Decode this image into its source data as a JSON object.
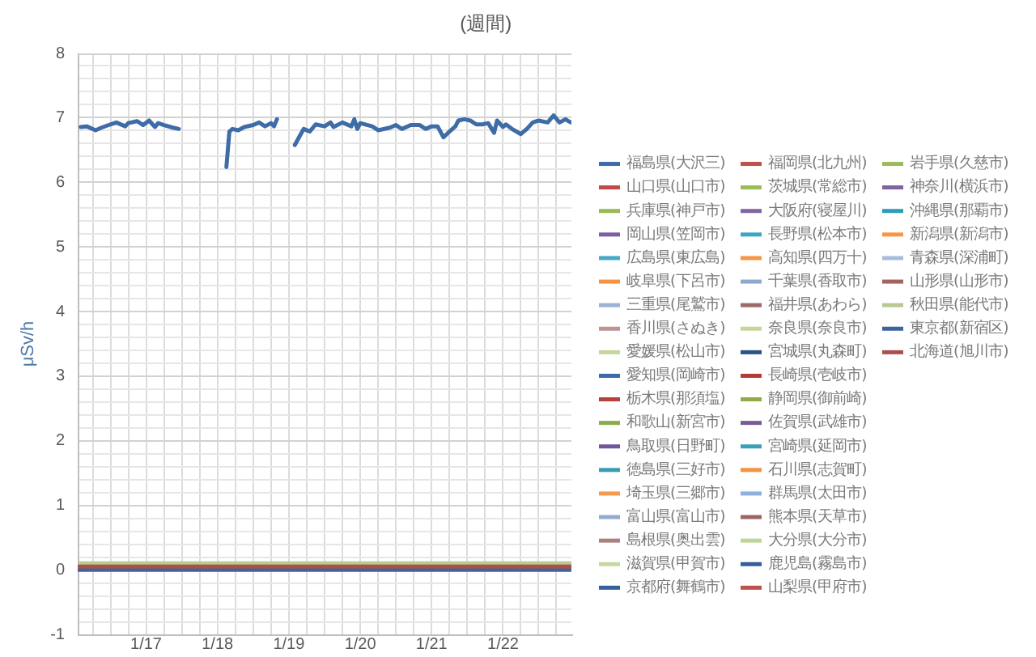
{
  "chart_data": {
    "type": "line",
    "title": "(週間)",
    "ylabel": "μSv/h",
    "legend": "right",
    "grid": true,
    "xlim": [
      "--01-16T01:00",
      "--01-22T23:00"
    ],
    "xticks": [
      {
        "value": "--01-16T06:00",
        "label": null
      },
      {
        "value": "--01-16T12:00",
        "label": null
      },
      {
        "value": "--01-16T18:00",
        "label": null
      },
      {
        "value": "--01-17T00:00",
        "label": "1/17"
      },
      {
        "value": "--01-17T06:00",
        "label": null
      },
      {
        "value": "--01-17T12:00",
        "label": null
      },
      {
        "value": "--01-17T18:00",
        "label": null
      },
      {
        "value": "--01-18T00:00",
        "label": "1/18"
      },
      {
        "value": "--01-18T06:00",
        "label": null
      },
      {
        "value": "--01-18T12:00",
        "label": null
      },
      {
        "value": "--01-18T18:00",
        "label": null
      },
      {
        "value": "--01-19T00:00",
        "label": "1/19"
      },
      {
        "value": "--01-19T06:00",
        "label": null
      },
      {
        "value": "--01-19T12:00",
        "label": null
      },
      {
        "value": "--01-19T18:00",
        "label": null
      },
      {
        "value": "--01-20T00:00",
        "label": "1/20"
      },
      {
        "value": "--01-20T06:00",
        "label": null
      },
      {
        "value": "--01-20T12:00",
        "label": null
      },
      {
        "value": "--01-20T18:00",
        "label": null
      },
      {
        "value": "--01-21T00:00",
        "label": "1/21"
      },
      {
        "value": "--01-21T06:00",
        "label": null
      },
      {
        "value": "--01-21T12:00",
        "label": null
      },
      {
        "value": "--01-21T18:00",
        "label": null
      },
      {
        "value": "--01-22T00:00",
        "label": "1/22"
      },
      {
        "value": "--01-22T06:00",
        "label": null
      },
      {
        "value": "--01-22T12:00",
        "label": null
      },
      {
        "value": "--01-22T18:00",
        "label": null
      }
    ],
    "ylim": [
      -1,
      8
    ],
    "yticks": [
      -1,
      {
        "value": -0.8,
        "label": null
      },
      {
        "value": -0.6,
        "label": null
      },
      {
        "value": -0.4,
        "label": null
      },
      {
        "value": -0.2,
        "label": null
      },
      0,
      {
        "value": 0.2,
        "label": null
      },
      {
        "value": 0.4,
        "label": null
      },
      {
        "value": 0.6,
        "label": null
      },
      {
        "value": 0.8,
        "label": null
      },
      1,
      {
        "value": 1.2,
        "label": null
      },
      {
        "value": 1.4,
        "label": null
      },
      {
        "value": 1.6,
        "label": null
      },
      {
        "value": 1.8,
        "label": null
      },
      2,
      {
        "value": 2.2,
        "label": null
      },
      {
        "value": 2.4,
        "label": null
      },
      {
        "value": 2.6,
        "label": null
      },
      {
        "value": 2.8,
        "label": null
      },
      3,
      {
        "value": 3.2,
        "label": null
      },
      {
        "value": 3.4,
        "label": null
      },
      {
        "value": 3.6,
        "label": null
      },
      {
        "value": 3.8,
        "label": null
      },
      4,
      {
        "value": 4.2,
        "label": null
      },
      {
        "value": 4.4,
        "label": null
      },
      {
        "value": 4.6,
        "label": null
      },
      {
        "value": 4.8,
        "label": null
      },
      5,
      {
        "value": 5.2,
        "label": null
      },
      {
        "value": 5.4,
        "label": null
      },
      {
        "value": 5.6,
        "label": null
      },
      {
        "value": 5.8,
        "label": null
      },
      6,
      {
        "value": 6.2,
        "label": null
      },
      {
        "value": 6.4,
        "label": null
      },
      {
        "value": 6.6,
        "label": null
      },
      {
        "value": 6.8,
        "label": null
      },
      7,
      {
        "value": 7.2,
        "label": null
      },
      {
        "value": 7.4,
        "label": null
      },
      {
        "value": 7.6,
        "label": null
      },
      {
        "value": 7.8,
        "label": null
      },
      8
    ],
    "x": [
      "--01-16T01:00",
      "--01-17T00:00",
      "--01-18T00:00",
      "--01-19T00:00",
      "--01-20T00:00",
      "--01-21T00:00",
      "--01-22T00:00",
      "--01-22T23:00"
    ],
    "series": [
      {
        "name": "福島県(大沢三)",
        "color": "#3e6ca6",
        "x": [
          "--01-16T02:00",
          "--01-16T04:00",
          "--01-16T07:00",
          "--01-16T09:00",
          "--01-16T12:00",
          "--01-16T14:00",
          "--01-16T17:00",
          "--01-16T18:00",
          "--01-16T21:00",
          "--01-16T23:00",
          "--01-17T01:00",
          "--01-17T03:00",
          "--01-17T04:00",
          "--01-17T06:00",
          "--01-17T09:00",
          "--01-17T11:00",
          "--01-17T12:00",
          "--01-18T03:00",
          "--01-18T04:00",
          "--01-18T05:00",
          "--01-18T07:00",
          "--01-18T09:00",
          "--01-18T12:00",
          "--01-18T14:00",
          "--01-18T16:00",
          "--01-18T18:00",
          "--01-18T19:00",
          "--01-18T20:00",
          "--01-18T21:00",
          "--01-19T02:00",
          "--01-19T04:00",
          "--01-19T05:00",
          "--01-19T07:00",
          "--01-19T09:00",
          "--01-19T12:00",
          "--01-19T14:00",
          "--01-19T15:00",
          "--01-19T18:00",
          "--01-19T21:00",
          "--01-19T22:00",
          "--01-19T23:00",
          "--01-20T00:00",
          "--01-20T04:00",
          "--01-20T06:00",
          "--01-20T10:00",
          "--01-20T12:00",
          "--01-20T14:00",
          "--01-20T17:00",
          "--01-20T20:00",
          "--01-20T22:00",
          "--01-21T00:00",
          "--01-21T02:00",
          "--01-21T04:00",
          "--01-21T06:00",
          "--01-21T08:00",
          "--01-21T09:00",
          "--01-21T11:00",
          "--01-21T13:00",
          "--01-21T15:00",
          "--01-21T17:00",
          "--01-21T19:00",
          "--01-21T21:00",
          "--01-21T22:00",
          "--01-22T00:00",
          "--01-22T01:00",
          "--01-22T03:00",
          "--01-22T06:00",
          "--01-22T08:00",
          "--01-22T10:00",
          "--01-22T12:00",
          "--01-22T15:00",
          "--01-22T17:00",
          "--01-22T19:00",
          "--01-22T21:00",
          "--01-22T22:00",
          "--01-22T23:00"
        ],
        "values": [
          6.86,
          6.87,
          6.81,
          6.85,
          6.9,
          6.93,
          6.87,
          6.92,
          6.95,
          6.89,
          6.96,
          6.86,
          6.92,
          6.89,
          6.85,
          6.83,
          null,
          6.24,
          6.79,
          6.83,
          6.81,
          6.86,
          6.89,
          6.93,
          6.87,
          6.92,
          6.87,
          6.98,
          null,
          6.58,
          6.75,
          6.83,
          6.79,
          6.9,
          6.87,
          6.93,
          6.86,
          6.93,
          6.87,
          6.98,
          6.83,
          6.92,
          6.87,
          6.81,
          6.85,
          6.89,
          6.83,
          6.89,
          6.89,
          6.83,
          6.87,
          6.87,
          6.7,
          6.79,
          6.87,
          6.96,
          6.98,
          6.96,
          6.9,
          6.9,
          6.92,
          6.77,
          6.96,
          6.86,
          6.9,
          6.83,
          6.75,
          6.83,
          6.93,
          6.96,
          6.93,
          7.04,
          6.93,
          6.98,
          6.95,
          6.93
        ]
      },
      {
        "name": "山口県(山口市)",
        "color": "#be4b48",
        "values": [
          null,
          null,
          null,
          null,
          null,
          null,
          null,
          null
        ]
      },
      {
        "name": "兵庫県(神戸市)",
        "color": "#98b954",
        "values": [
          null,
          null,
          null,
          null,
          null,
          null,
          null,
          null
        ]
      },
      {
        "name": "岡山県(笠岡市)",
        "color": "#7d60a0",
        "values": [
          null,
          null,
          null,
          null,
          null,
          null,
          null,
          null
        ]
      },
      {
        "name": "広島県(東広島)",
        "color": "#46aac5",
        "values": [
          null,
          null,
          null,
          null,
          null,
          null,
          null,
          null
        ]
      },
      {
        "name": "岐阜県(下呂市)",
        "color": "#f69240",
        "values": [
          null,
          null,
          null,
          null,
          null,
          null,
          null,
          null
        ]
      },
      {
        "name": "三重県(尾鷲市)",
        "color": "#9db3d6",
        "values": [
          null,
          null,
          null,
          null,
          null,
          null,
          null,
          null
        ]
      },
      {
        "name": "香川県(さぬき)",
        "color": "#c09393",
        "values": [
          null,
          null,
          null,
          null,
          null,
          null,
          null,
          null
        ]
      },
      {
        "name": "愛媛県(松山市)",
        "color": "#c3d69b",
        "values": [
          null,
          null,
          null,
          null,
          null,
          null,
          null,
          null
        ]
      },
      {
        "name": "愛知県(岡崎市)",
        "color": "#3f68a8",
        "values": [
          null,
          null,
          null,
          null,
          null,
          null,
          null,
          null
        ]
      },
      {
        "name": "栃木県(那須塩)",
        "color": "#b8403d",
        "values": [
          null,
          null,
          null,
          null,
          null,
          null,
          null,
          null
        ]
      },
      {
        "name": "和歌山(新宮市)",
        "color": "#8aab4a",
        "values": [
          null,
          null,
          null,
          null,
          null,
          null,
          null,
          null
        ]
      },
      {
        "name": "鳥取県(日野町)",
        "color": "#71569a",
        "values": [
          null,
          null,
          null,
          null,
          null,
          null,
          null,
          null
        ]
      },
      {
        "name": "徳島県(三好市)",
        "color": "#3b9ab4",
        "values": [
          null,
          null,
          null,
          null,
          null,
          null,
          null,
          null
        ]
      },
      {
        "name": "埼玉県(三郷市)",
        "color": "#f39a4f",
        "values": [
          null,
          null,
          null,
          null,
          null,
          null,
          null,
          null
        ]
      },
      {
        "name": "富山県(富山市)",
        "color": "#93abd3",
        "values": [
          null,
          null,
          null,
          null,
          null,
          null,
          null,
          null
        ]
      },
      {
        "name": "島根県(奥出雲)",
        "color": "#a9827f",
        "values": [
          null,
          null,
          null,
          null,
          null,
          null,
          null,
          null
        ]
      },
      {
        "name": "滋賀県(甲賀市)",
        "color": "#c6d9a2",
        "values": [
          null,
          null,
          null,
          null,
          null,
          null,
          null,
          null
        ]
      },
      {
        "name": "京都府(舞鶴市)",
        "color": "#37609a",
        "values": [
          null,
          null,
          null,
          null,
          null,
          null,
          null,
          null
        ]
      },
      {
        "name": "福岡県(北九州)",
        "color": "#c0504d",
        "values": [
          null,
          null,
          null,
          null,
          null,
          null,
          null,
          null
        ]
      },
      {
        "name": "茨城県(常総市)",
        "color": "#9bbb59",
        "values": [
          null,
          null,
          null,
          null,
          null,
          null,
          null,
          null
        ]
      },
      {
        "name": "大阪府(寝屋川)",
        "color": "#8064a2",
        "values": [
          null,
          null,
          null,
          null,
          null,
          null,
          null,
          null
        ]
      },
      {
        "name": "長野県(松本市)",
        "color": "#3fa6c2",
        "values": [
          null,
          null,
          null,
          null,
          null,
          null,
          null,
          null
        ]
      },
      {
        "name": "高知県(四万十)",
        "color": "#f79646",
        "values": [
          null,
          null,
          null,
          null,
          null,
          null,
          null,
          null
        ]
      },
      {
        "name": "千葉県(香取市)",
        "color": "#8ea9d1",
        "values": [
          null,
          null,
          null,
          null,
          null,
          null,
          null,
          null
        ]
      },
      {
        "name": "福井県(あわら)",
        "color": "#9c6a68",
        "values": [
          null,
          null,
          null,
          null,
          null,
          null,
          null,
          null
        ]
      },
      {
        "name": "奈良県(奈良市)",
        "color": "#c4d79b",
        "values": [
          null,
          null,
          null,
          null,
          null,
          null,
          null,
          null
        ]
      },
      {
        "name": "宮城県(丸森町)",
        "color": "#2c5283",
        "values": [
          null,
          null,
          null,
          null,
          null,
          null,
          null,
          null
        ]
      },
      {
        "name": "長崎県(壱岐市)",
        "color": "#b53a3a",
        "values": [
          null,
          null,
          null,
          null,
          null,
          null,
          null,
          null
        ]
      },
      {
        "name": "静岡県(御前崎)",
        "color": "#8fac48",
        "values": [
          null,
          null,
          null,
          null,
          null,
          null,
          null,
          null
        ]
      },
      {
        "name": "佐賀県(武雄市)",
        "color": "#765b96",
        "values": [
          null,
          null,
          null,
          null,
          null,
          null,
          null,
          null
        ]
      },
      {
        "name": "宮崎県(延岡市)",
        "color": "#3aa0b8",
        "values": [
          null,
          null,
          null,
          null,
          null,
          null,
          null,
          null
        ]
      },
      {
        "name": "石川県(志賀町)",
        "color": "#f49442",
        "values": [
          null,
          null,
          null,
          null,
          null,
          null,
          null,
          null
        ]
      },
      {
        "name": "群馬県(太田市)",
        "color": "#8fb0dc",
        "values": [
          null,
          null,
          null,
          null,
          null,
          null,
          null,
          null
        ]
      },
      {
        "name": "熊本県(天草市)",
        "color": "#9e6663",
        "values": [
          null,
          null,
          null,
          null,
          null,
          null,
          null,
          null
        ]
      },
      {
        "name": "大分県(大分市)",
        "color": "#bfd598",
        "values": [
          null,
          null,
          null,
          null,
          null,
          null,
          null,
          null
        ]
      },
      {
        "name": "鹿児島(霧島市)",
        "color": "#355e97",
        "values": [
          null,
          null,
          null,
          null,
          null,
          null,
          null,
          null
        ]
      },
      {
        "name": "山梨県(甲府市)",
        "color": "#c0504d",
        "values": [
          null,
          null,
          null,
          null,
          null,
          null,
          null,
          null
        ]
      },
      {
        "name": "岩手県(久慈市)",
        "color": "#9bbb59",
        "values": [
          null,
          null,
          null,
          null,
          null,
          null,
          null,
          null
        ]
      },
      {
        "name": "神奈川(横浜市)",
        "color": "#8064a2",
        "values": [
          null,
          null,
          null,
          null,
          null,
          null,
          null,
          null
        ]
      },
      {
        "name": "沖縄県(那覇市)",
        "color": "#2d9cb9",
        "values": [
          null,
          null,
          null,
          null,
          null,
          null,
          null,
          null
        ]
      },
      {
        "name": "新潟県(新潟市)",
        "color": "#f79646",
        "values": [
          null,
          null,
          null,
          null,
          null,
          null,
          null,
          null
        ]
      },
      {
        "name": "青森県(深浦町)",
        "color": "#a6bddb",
        "values": [
          null,
          null,
          null,
          null,
          null,
          null,
          null,
          null
        ]
      },
      {
        "name": "山形県(山形市)",
        "color": "#a5625e",
        "values": [
          null,
          null,
          null,
          null,
          null,
          null,
          null,
          null
        ]
      },
      {
        "name": "秋田県(能代市)",
        "color": "#b9c98f",
        "values": [
          0.1,
          0.1,
          0.1,
          0.1,
          0.1,
          0.1,
          0.1,
          0.1
        ]
      },
      {
        "name": "東京都(新宿区)",
        "color": "#3b64a0",
        "values": [
          0.0,
          0.0,
          0.0,
          0.0,
          0.0,
          0.0,
          0.0,
          0.0
        ]
      },
      {
        "name": "北海道(旭川市)",
        "color": "#a8504e",
        "values": [
          0.05,
          0.05,
          0.05,
          0.05,
          0.05,
          0.05,
          0.05,
          0.05
        ]
      }
    ]
  }
}
